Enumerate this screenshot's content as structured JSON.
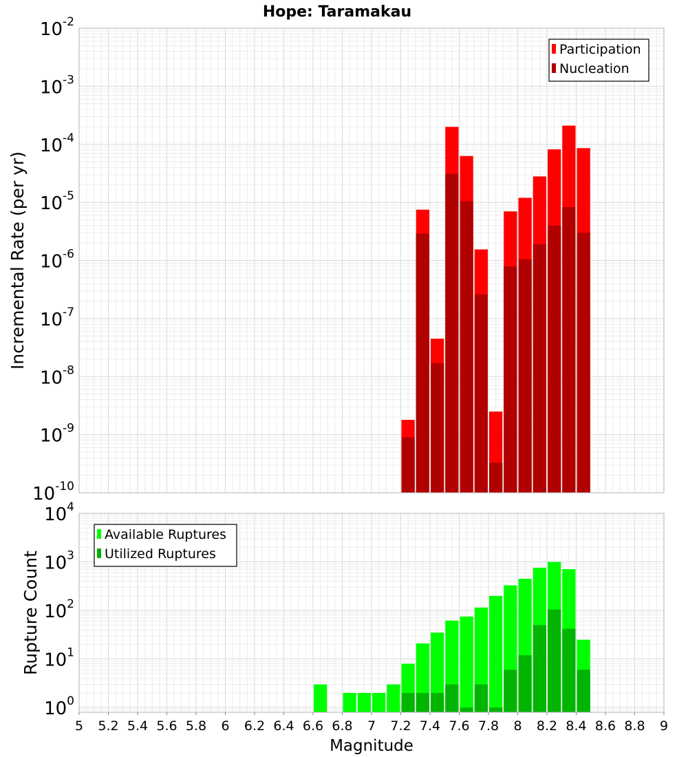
{
  "chart_data": [
    {
      "type": "bar",
      "panel": "top",
      "title": "Hope: Taramakau",
      "xlabel": "",
      "ylabel": "Incremental Rate (per yr)",
      "y_scale": "log",
      "xlim": [
        5,
        9
      ],
      "ylim": [
        1e-10,
        0.01
      ],
      "y_ticks": [
        {
          "base": "10",
          "exp": "-2",
          "value": 0.01
        },
        {
          "base": "10",
          "exp": "-3",
          "value": 0.001
        },
        {
          "base": "10",
          "exp": "-4",
          "value": 0.0001
        },
        {
          "base": "10",
          "exp": "-5",
          "value": 1e-05
        },
        {
          "base": "10",
          "exp": "-6",
          "value": 1e-06
        },
        {
          "base": "10",
          "exp": "-7",
          "value": 1e-07
        },
        {
          "base": "10",
          "exp": "-8",
          "value": 1e-08
        },
        {
          "base": "10",
          "exp": "-9",
          "value": 1e-09
        },
        {
          "base": "10",
          "exp": "-10",
          "value": 1e-10
        }
      ],
      "grid": true,
      "legend_position": "top-right",
      "bin_width": 0.1,
      "series": [
        {
          "name": "Participation",
          "color": "#ff0000",
          "x": [
            7.25,
            7.35,
            7.45,
            7.55,
            7.65,
            7.75,
            7.85,
            7.95,
            8.05,
            8.15,
            8.25,
            8.35,
            8.45
          ],
          "values": [
            1.8e-09,
            7.5e-06,
            4.5e-08,
            0.0002,
            6.3e-05,
            1.55e-06,
            2.5e-09,
            7e-06,
            1.2e-05,
            2.8e-05,
            8.2e-05,
            0.00021,
            8.6e-05
          ]
        },
        {
          "name": "Nucleation",
          "color": "#b00000",
          "x": [
            7.25,
            7.35,
            7.45,
            7.55,
            7.65,
            7.75,
            7.85,
            7.95,
            8.05,
            8.15,
            8.25,
            8.35,
            8.45
          ],
          "values": [
            9e-10,
            2.9e-06,
            1.7e-08,
            3.1e-05,
            1.05e-05,
            2.6e-07,
            3.3e-10,
            7.9e-07,
            1.05e-06,
            1.9e-06,
            4e-06,
            8.3e-06,
            3e-06
          ]
        }
      ]
    },
    {
      "type": "bar",
      "panel": "bottom",
      "title": "",
      "xlabel": "Magnitude",
      "ylabel": "Rupture Count",
      "y_scale": "log",
      "xlim": [
        5,
        9
      ],
      "ylim": [
        0.8,
        10000
      ],
      "x_ticks": [
        "5",
        "5.2",
        "5.4",
        "5.6",
        "5.8",
        "6",
        "6.2",
        "6.4",
        "6.6",
        "6.8",
        "7",
        "7.2",
        "7.4",
        "7.6",
        "7.8",
        "8",
        "8.2",
        "8.4",
        "8.6",
        "8.8",
        "9"
      ],
      "y_ticks": [
        {
          "base": "10",
          "exp": "4",
          "value": 10000
        },
        {
          "base": "10",
          "exp": "3",
          "value": 1000
        },
        {
          "base": "10",
          "exp": "2",
          "value": 100
        },
        {
          "base": "10",
          "exp": "1",
          "value": 10
        },
        {
          "base": "10",
          "exp": "0",
          "value": 1
        }
      ],
      "grid": true,
      "legend_position": "top-left",
      "bin_width": 0.1,
      "series": [
        {
          "name": "Available Ruptures",
          "color": "#00ff00",
          "x": [
            6.65,
            6.85,
            6.95,
            7.05,
            7.15,
            7.25,
            7.35,
            7.45,
            7.55,
            7.65,
            7.75,
            7.85,
            7.95,
            8.05,
            8.15,
            8.25,
            8.35,
            8.45
          ],
          "values": [
            3,
            2,
            2,
            2,
            3,
            8,
            21,
            35,
            62,
            75,
            115,
            200,
            330,
            450,
            760,
            1000,
            710,
            25
          ]
        },
        {
          "name": "Utilized Ruptures",
          "color": "#00b400",
          "x": [
            7.25,
            7.35,
            7.45,
            7.55,
            7.65,
            7.75,
            7.85,
            7.95,
            8.05,
            8.15,
            8.25,
            8.35,
            8.45
          ],
          "values": [
            2,
            2,
            2,
            3,
            1,
            3,
            1,
            6,
            12,
            50,
            105,
            42,
            6
          ]
        }
      ]
    }
  ]
}
